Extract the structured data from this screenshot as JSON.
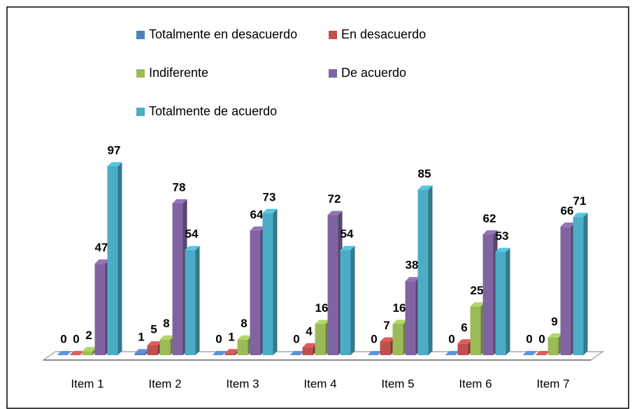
{
  "chart_data": {
    "type": "bar3d",
    "categories": [
      "Item 1",
      "Item 2",
      "Item 3",
      "Item 4",
      "Item 5",
      "Item 6",
      "Item 7"
    ],
    "series": [
      {
        "name": "Totalmente en desacuerdo",
        "color": "#4f81bd",
        "values": [
          0,
          1,
          0,
          0,
          0,
          0,
          0
        ]
      },
      {
        "name": "En desacuerdo",
        "color": "#c0504d",
        "values": [
          0,
          5,
          1,
          4,
          7,
          6,
          0
        ]
      },
      {
        "name": "Indiferente",
        "color": "#9bbb59",
        "values": [
          2,
          8,
          8,
          16,
          16,
          25,
          9
        ]
      },
      {
        "name": "De acuerdo",
        "color": "#8064a2",
        "values": [
          47,
          78,
          64,
          72,
          38,
          62,
          66
        ]
      },
      {
        "name": "Totalmente de acuerdo",
        "color": "#4bacc6",
        "values": [
          97,
          54,
          73,
          54,
          85,
          53,
          71
        ]
      }
    ]
  }
}
